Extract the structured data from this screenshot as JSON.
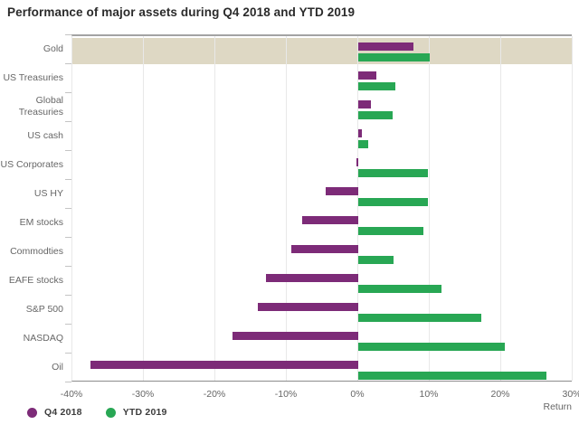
{
  "title": "Performance of major assets during Q4 2018 and YTD 2019",
  "colors": {
    "q4_2018": "#7d2b78",
    "ytd_2019": "#28a754",
    "highlight_band": "#ded8c4",
    "gridline": "#e8e8e8",
    "axis_line": "#999999",
    "muted_text": "#666666",
    "title_text": "#2b2b2b"
  },
  "legend": {
    "items": [
      {
        "label": "Q4 2018",
        "color_key": "q4_2018"
      },
      {
        "label": "YTD 2019",
        "color_key": "ytd_2019"
      }
    ]
  },
  "chart_data": {
    "type": "bar",
    "orientation": "horizontal",
    "title": "Performance of major assets during Q4 2018 and YTD 2019",
    "categories": [
      "Gold",
      "US Treasuries",
      "Global Treasuries",
      "US cash",
      "US Corporates",
      "US HY",
      "EM stocks",
      "Commodties",
      "EAFE stocks",
      "S&P 500",
      "NASDAQ",
      "Oil"
    ],
    "series": [
      {
        "name": "Q4 2018",
        "color": "#7d2b78",
        "values": [
          7.7,
          2.5,
          1.8,
          0.5,
          -0.2,
          -4.6,
          -7.8,
          -9.4,
          -12.9,
          -14.0,
          -17.6,
          -37.5
        ]
      },
      {
        "name": "YTD 2019",
        "color": "#28a754",
        "values": [
          10.0,
          5.2,
          4.8,
          1.4,
          9.7,
          9.7,
          9.1,
          4.9,
          11.6,
          17.2,
          20.5,
          26.3
        ]
      }
    ],
    "xlabel": "Return",
    "x_ticks": [
      "-40%",
      "-30%",
      "-20%",
      "-10%",
      "0%",
      "10%",
      "20%",
      "30%"
    ],
    "x_tick_values": [
      -40,
      -30,
      -20,
      -10,
      0,
      10,
      20,
      30
    ],
    "xlim": [
      -40,
      30
    ],
    "grid": true,
    "highlighted_category": "Gold",
    "legend_position": "bottom-left"
  }
}
